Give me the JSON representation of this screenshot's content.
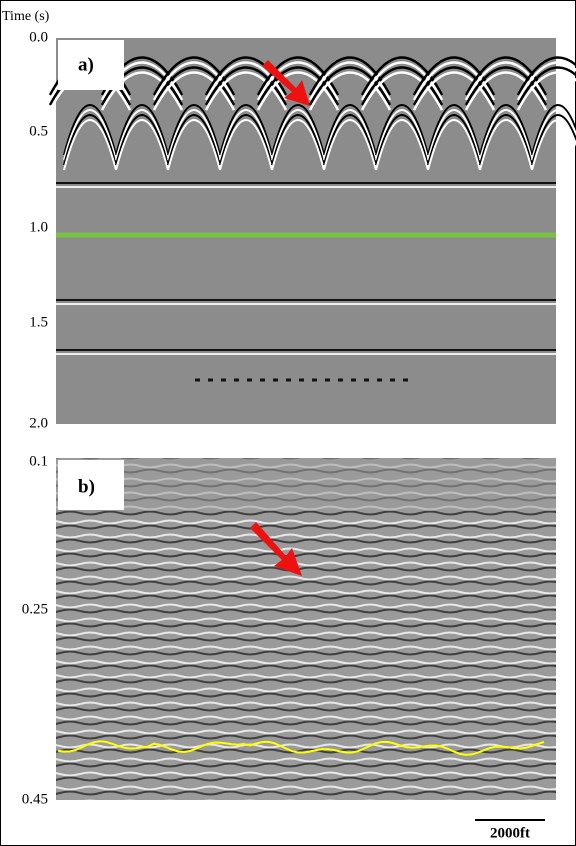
{
  "axis_label": "Time (s)",
  "panels": [
    {
      "label": "a)",
      "ticks": [
        "0.0",
        "0.5",
        "1.0",
        "1.5",
        "2.0"
      ]
    },
    {
      "label": "b)",
      "ticks": [
        "0.1",
        "0.25",
        "0.45"
      ]
    }
  ],
  "scale_bar": "2000ft"
}
